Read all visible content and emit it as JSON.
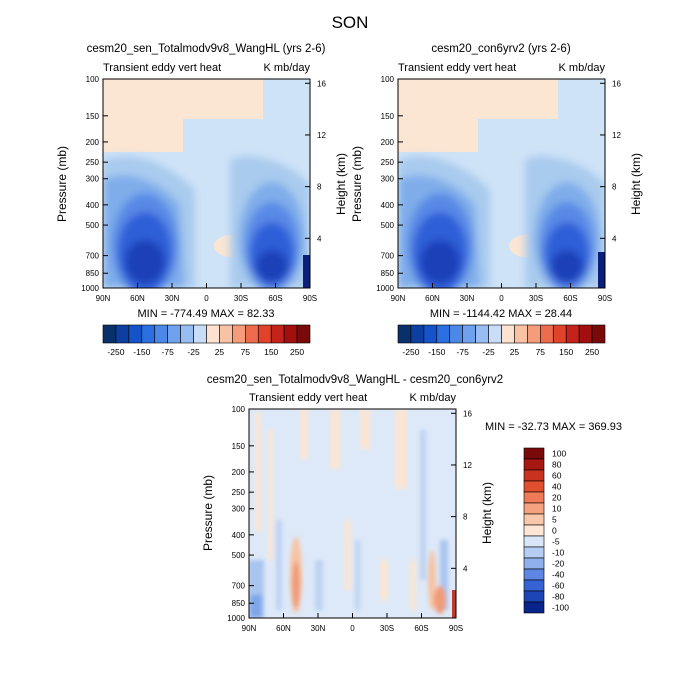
{
  "page": {
    "title": "SON"
  },
  "colors": {
    "positive": "#b81c1c",
    "negative": "#08306b",
    "frame": "#000000"
  },
  "y_axis": {
    "pressure_label": "Pressure (mb)",
    "height_label": "Height (km)",
    "pressure_ticks": [
      100,
      150,
      200,
      250,
      300,
      400,
      500,
      700,
      850,
      1000
    ],
    "height_ticks": [
      4,
      8,
      12,
      16
    ],
    "ylim_mb": [
      1000,
      100
    ]
  },
  "x_axis": {
    "tick_labels": [
      "90N",
      "60N",
      "30N",
      "0",
      "30S",
      "60S",
      "90S"
    ],
    "tick_values": [
      90,
      60,
      30,
      0,
      -30,
      -60,
      -90
    ]
  },
  "panels": [
    {
      "id": "top-left",
      "title": "cesm20_sen_Totalmodv9v8_WangHL (yrs 2-6)",
      "left_label": "Transient eddy vert heat",
      "right_label": "K mb/day",
      "stats": "MIN = -774.49  MAX =  82.33"
    },
    {
      "id": "top-right",
      "title": "cesm20_con6yrv2 (yrs 2-6)",
      "left_label": "Transient eddy vert heat",
      "right_label": "K mb/day",
      "stats": "MIN = -1144.42  MAX =  28.44"
    },
    {
      "id": "bottom",
      "title": "cesm20_sen_Totalmodv9v8_WangHL - cesm20_con6yrv2",
      "left_label": "Transient eddy vert heat",
      "right_label": "K mb/day",
      "stats": "MIN = -32.73  MAX = 369.93"
    }
  ],
  "chart_data": [
    {
      "type": "heatmap",
      "title": "cesm20_sen_Totalmodv9v8_WangHL (yrs 2-6)",
      "xlabel": "",
      "ylabel": "Pressure (mb)",
      "xlim": [
        90,
        -90
      ],
      "ylim": [
        1000,
        100
      ],
      "min": -774.49,
      "max": 82.33,
      "legend_levels": [
        -250,
        -200,
        -150,
        -100,
        -75,
        -50,
        -25,
        -10,
        10,
        25,
        50,
        75,
        100,
        150,
        200,
        250
      ],
      "legend_labels": [
        "-250",
        "-150",
        "-75",
        "-25",
        "25",
        "75",
        "150",
        "250"
      ]
    },
    {
      "type": "heatmap",
      "title": "cesm20_con6yrv2 (yrs 2-6)",
      "xlabel": "",
      "ylabel": "Pressure (mb)",
      "xlim": [
        90,
        -90
      ],
      "ylim": [
        1000,
        100
      ],
      "min": -1144.42,
      "max": 28.44,
      "legend_levels": [
        -250,
        -200,
        -150,
        -100,
        -75,
        -50,
        -25,
        -10,
        10,
        25,
        50,
        75,
        100,
        150,
        200,
        250
      ],
      "legend_labels": [
        "-250",
        "-150",
        "-75",
        "-25",
        "25",
        "75",
        "150",
        "250"
      ]
    },
    {
      "type": "heatmap",
      "title": "cesm20_sen_Totalmodv9v8_WangHL - cesm20_con6yrv2",
      "xlabel": "",
      "ylabel": "Pressure (mb)",
      "xlim": [
        90,
        -90
      ],
      "ylim": [
        1000,
        100
      ],
      "min": -32.73,
      "max": 369.93,
      "legend_labels": [
        "100",
        "80",
        "60",
        "40",
        "20",
        "10",
        "5",
        "0",
        "-5",
        "-10",
        "-20",
        "-40",
        "-60",
        "-80",
        "-100"
      ]
    }
  ]
}
